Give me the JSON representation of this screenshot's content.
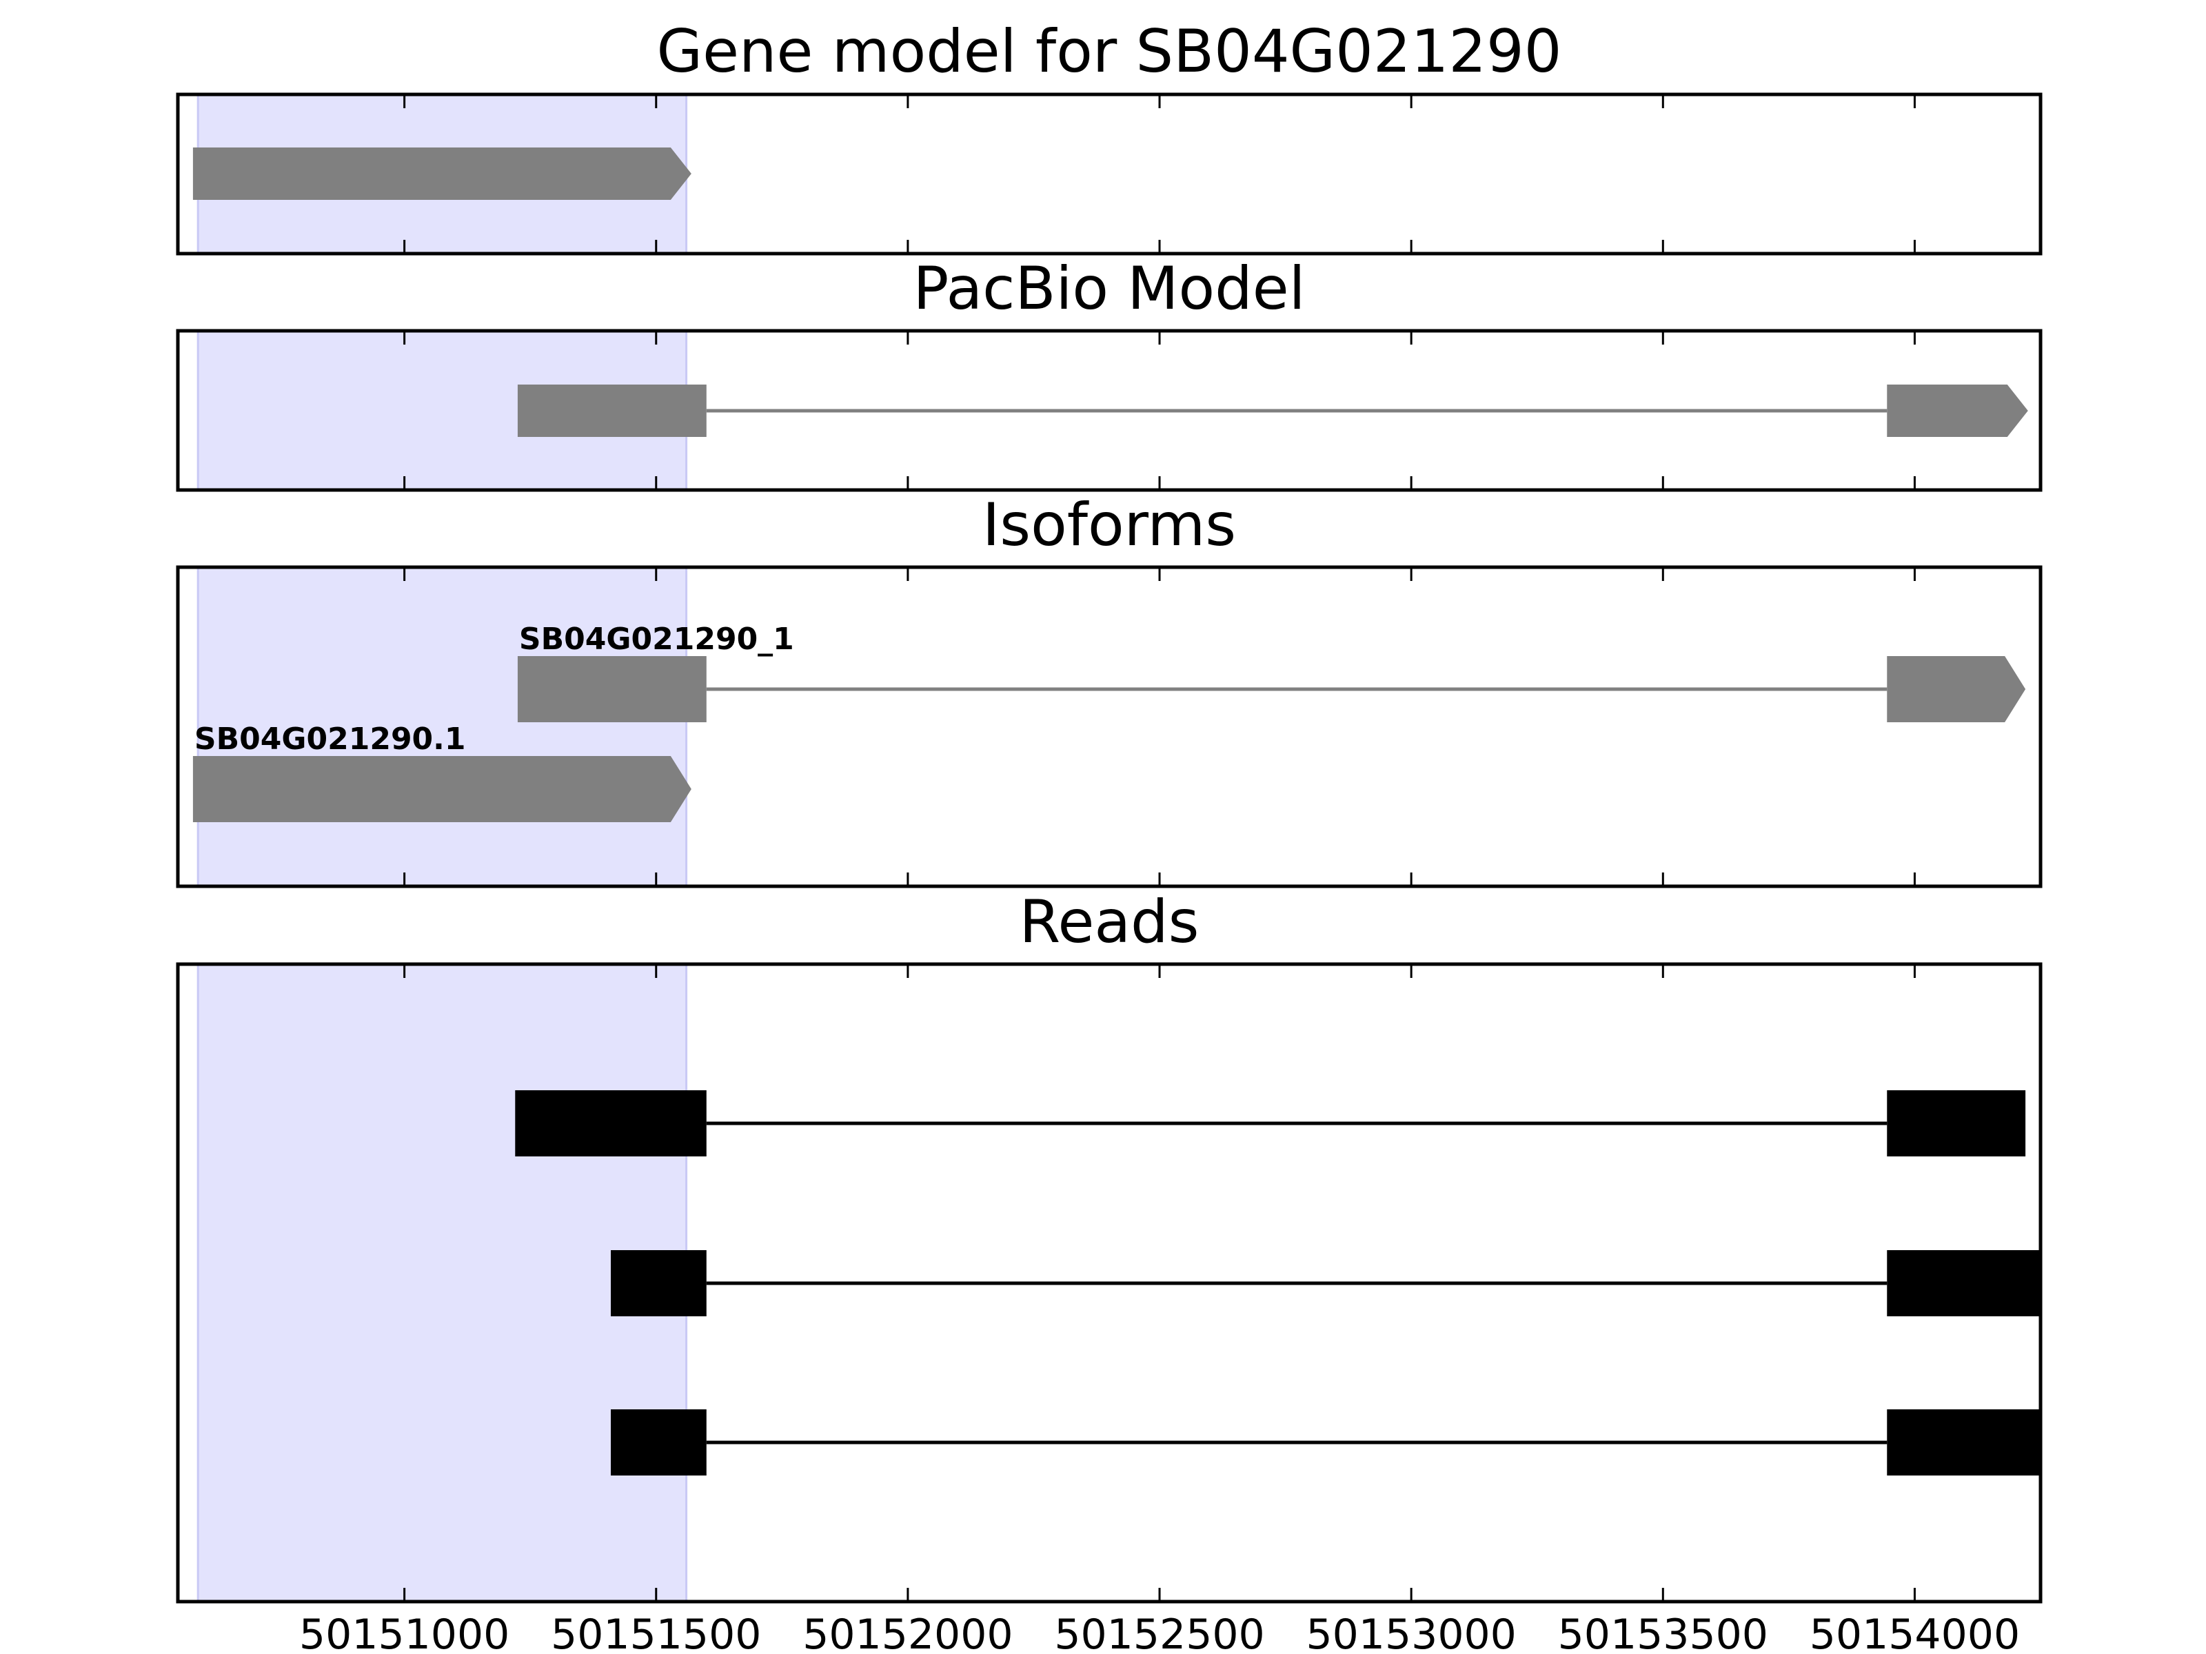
{
  "chart_data": {
    "type": "gene-track",
    "xlim": [
      50150550,
      50154250
    ],
    "xticks": [
      50151000,
      50151500,
      50152000,
      50152500,
      50153000,
      50153500,
      50154000
    ],
    "highlight": {
      "start": 50150590,
      "end": 50151560,
      "color": "#e3e3fd"
    },
    "colors": {
      "model": "#808080",
      "reads": "#000000",
      "frame": "#000000"
    },
    "panels": [
      {
        "id": "gene-model",
        "title": "Gene model for SB04G021290",
        "features": [
          {
            "exons": [
              [
                50150580,
                50151570
              ]
            ],
            "strand": "+"
          }
        ]
      },
      {
        "id": "pacbio-model",
        "title": "PacBio Model",
        "features": [
          {
            "exons": [
              [
                50151225,
                50151600
              ],
              [
                50153945,
                50154225
              ]
            ],
            "strand": "+"
          }
        ]
      },
      {
        "id": "isoforms",
        "title": "Isoforms",
        "features": [
          {
            "label": "SB04G021290_1",
            "exons": [
              [
                50151225,
                50151600
              ],
              [
                50153945,
                50154220
              ]
            ],
            "strand": "+"
          },
          {
            "label": "SB04G021290.1",
            "exons": [
              [
                50150580,
                50151570
              ]
            ],
            "strand": "+"
          }
        ]
      },
      {
        "id": "reads",
        "title": "Reads",
        "features": [
          {
            "exons": [
              [
                50151220,
                50151600
              ],
              [
                50153945,
                50154220
              ]
            ]
          },
          {
            "exons": [
              [
                50151410,
                50151600
              ],
              [
                50153945,
                50154250
              ]
            ]
          },
          {
            "exons": [
              [
                50151410,
                50151600
              ],
              [
                50153945,
                50154250
              ]
            ]
          }
        ]
      }
    ]
  }
}
